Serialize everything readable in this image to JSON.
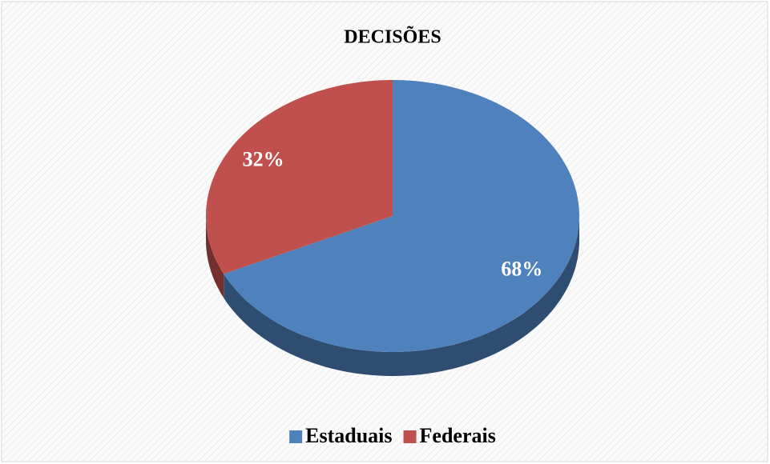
{
  "chart_data": {
    "type": "pie",
    "title": "DECISÕES",
    "categories": [
      "Estaduais",
      "Federais"
    ],
    "values": [
      68,
      32
    ],
    "value_labels": [
      "68%",
      "32%"
    ],
    "colors": [
      "#4f81bd",
      "#c0504d"
    ],
    "legend": "bottom"
  }
}
